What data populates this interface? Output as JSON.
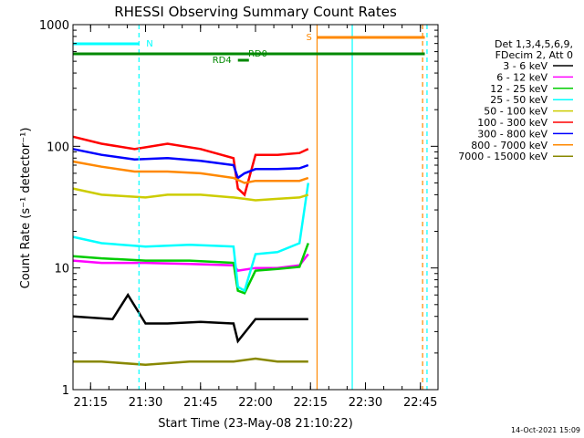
{
  "chart_data": {
    "type": "line",
    "title": "RHESSI Observing Summary Count Rates",
    "xlabel": "Start Time (23-May-08 21:10:22)",
    "ylabel": "Count Rate (s⁻¹ detector⁻¹)",
    "yscale": "log",
    "ylim": [
      1,
      1000
    ],
    "xlim_minutes": [
      21.17,
      22.83
    ],
    "x_unit": "hours (UT)",
    "xticks": [
      "21:15",
      "21:30",
      "21:45",
      "22:00",
      "22:15",
      "22:30",
      "22:45"
    ],
    "xtick_values": [
      21.25,
      21.5,
      21.75,
      22.0,
      22.25,
      22.5,
      22.75
    ],
    "yticks": [
      "1",
      "10",
      "100",
      "1000"
    ],
    "ytick_values": [
      1,
      10,
      100,
      1000
    ],
    "legend_header": [
      "Det 1,3,4,5,6,9,",
      "FDecim 2, Att 0"
    ],
    "legend_position": "right",
    "grid": false,
    "series": [
      {
        "name": "3 - 6 keV",
        "color": "#000000",
        "x": [
          21.17,
          21.35,
          21.42,
          21.5,
          21.6,
          21.75,
          21.9,
          21.92,
          22.0,
          22.1,
          22.2,
          22.24
        ],
        "y": [
          4.0,
          3.8,
          6.0,
          3.5,
          3.5,
          3.6,
          3.5,
          2.5,
          3.8,
          3.8,
          3.8,
          3.8
        ]
      },
      {
        "name": "6 - 12 keV",
        "color": "#ff00ff",
        "x": [
          21.17,
          21.3,
          21.5,
          21.7,
          21.9,
          21.92,
          22.0,
          22.1,
          22.2,
          22.24
        ],
        "y": [
          11.5,
          11.0,
          11.0,
          10.8,
          10.5,
          9.5,
          10.0,
          10.0,
          10.5,
          13.0
        ]
      },
      {
        "name": "12 - 25 keV",
        "color": "#00cc00",
        "x": [
          21.17,
          21.3,
          21.5,
          21.7,
          21.9,
          21.92,
          21.95,
          22.0,
          22.1,
          22.2,
          22.24
        ],
        "y": [
          12.5,
          12.0,
          11.5,
          11.5,
          11.0,
          6.5,
          6.2,
          9.5,
          9.8,
          10.2,
          16.0
        ]
      },
      {
        "name": "25 - 50 keV",
        "color": "#00ffff",
        "x": [
          21.17,
          21.3,
          21.5,
          21.7,
          21.9,
          21.92,
          21.95,
          22.0,
          22.1,
          22.2,
          22.24
        ],
        "y": [
          18.0,
          16.0,
          15.0,
          15.5,
          15.0,
          7.0,
          6.5,
          13.0,
          13.5,
          16.0,
          50.0
        ]
      },
      {
        "name": "50 - 100 keV",
        "color": "#cccc00",
        "x": [
          21.17,
          21.3,
          21.5,
          21.6,
          21.75,
          21.9,
          21.95,
          22.0,
          22.1,
          22.2,
          22.24
        ],
        "y": [
          45.0,
          40.0,
          38.0,
          40.0,
          40.0,
          38.0,
          37.0,
          36.0,
          37.0,
          38.0,
          40.0
        ]
      },
      {
        "name": "100 - 300 keV",
        "color": "#ff0000",
        "x": [
          21.17,
          21.3,
          21.45,
          21.6,
          21.75,
          21.9,
          21.92,
          21.95,
          22.0,
          22.1,
          22.2,
          22.24
        ],
        "y": [
          120.0,
          105.0,
          95.0,
          105.0,
          95.0,
          80.0,
          45.0,
          40.0,
          85.0,
          85.0,
          88.0,
          95.0
        ]
      },
      {
        "name": "300 - 800 keV",
        "color": "#0000ff",
        "x": [
          21.17,
          21.3,
          21.45,
          21.6,
          21.75,
          21.9,
          21.92,
          21.95,
          22.0,
          22.1,
          22.2,
          22.24
        ],
        "y": [
          95.0,
          85.0,
          78.0,
          80.0,
          76.0,
          70.0,
          55.0,
          60.0,
          65.0,
          65.0,
          66.0,
          70.0
        ]
      },
      {
        "name": "800 - 7000 keV",
        "color": "#ff8800",
        "x": [
          21.17,
          21.3,
          21.45,
          21.6,
          21.75,
          21.9,
          21.95,
          22.0,
          22.1,
          22.2,
          22.24
        ],
        "y": [
          75.0,
          68.0,
          62.0,
          62.0,
          60.0,
          55.0,
          50.0,
          52.0,
          52.0,
          52.0,
          55.0
        ]
      },
      {
        "name": "7000 - 15000 keV",
        "color": "#888800",
        "x": [
          21.17,
          21.3,
          21.5,
          21.7,
          21.9,
          22.0,
          22.1,
          22.2,
          22.24
        ],
        "y": [
          1.7,
          1.7,
          1.6,
          1.7,
          1.7,
          1.8,
          1.7,
          1.7,
          1.7
        ]
      }
    ],
    "annotations": {
      "flags": [
        {
          "label": "N",
          "color": "#00ffff",
          "x_start": 21.17,
          "x_end": 21.47
        },
        {
          "label": "S",
          "color": "#ff8800",
          "x_start": 22.28,
          "x_end": 22.77
        },
        {
          "label": "RD0",
          "color": "#008800",
          "x_start": 21.17,
          "x_end": 22.77
        },
        {
          "label": "RD4",
          "color": "#008800",
          "x_start": 21.92,
          "x_end": 21.97
        }
      ],
      "vertical_lines": [
        {
          "x": 21.47,
          "color": "#00ffff",
          "style": "dashed"
        },
        {
          "x": 22.28,
          "color": "#ff8800",
          "style": "solid"
        },
        {
          "x": 22.44,
          "color": "#00ffff",
          "style": "solid"
        },
        {
          "x": 22.76,
          "color": "#ff8800",
          "style": "dashed"
        },
        {
          "x": 22.78,
          "color": "#00ffff",
          "style": "dashed"
        }
      ]
    }
  },
  "footer": {
    "timestamp": "14-Oct-2021 15:09"
  }
}
